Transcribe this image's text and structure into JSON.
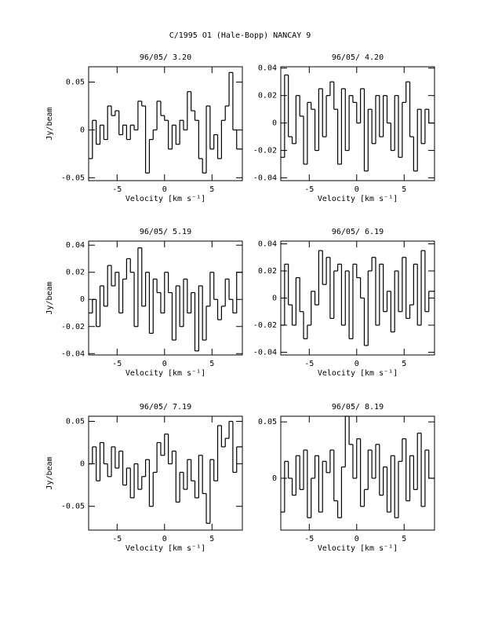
{
  "title": "C/1995 O1 (Hale-Bopp)   NANCAY     9",
  "chart_data": [
    {
      "type": "line",
      "drawstyle": "steps-mid",
      "color": "#000000",
      "title": "96/05/ 3.20",
      "xlabel": "Velocity [km s⁻¹]",
      "ylabel": "Jy/beam",
      "xlim": [
        -8,
        8.2
      ],
      "ylim": [
        -0.053,
        0.066
      ],
      "xticks": [
        -5,
        0,
        5
      ],
      "yticks": [
        -0.05,
        0,
        0.05
      ],
      "x": [
        -7.8,
        -7.4,
        -7.0,
        -6.6,
        -6.2,
        -5.8,
        -5.4,
        -5.0,
        -4.6,
        -4.2,
        -3.8,
        -3.4,
        -3.0,
        -2.6,
        -2.2,
        -1.8,
        -1.4,
        -1.0,
        -0.6,
        -0.2,
        0.2,
        0.6,
        1.0,
        1.4,
        1.8,
        2.2,
        2.6,
        3.0,
        3.4,
        3.8,
        4.2,
        4.6,
        5.0,
        5.4,
        5.8,
        6.2,
        6.6,
        7.0,
        7.4,
        7.8
      ],
      "values": [
        -0.03,
        0.01,
        -0.015,
        0.005,
        -0.01,
        0.025,
        0.015,
        0.02,
        -0.005,
        0.005,
        -0.01,
        0.005,
        0.0,
        0.03,
        0.025,
        -0.045,
        -0.01,
        0.0,
        0.03,
        0.015,
        0.01,
        -0.02,
        0.005,
        -0.015,
        0.01,
        0.0,
        0.04,
        0.02,
        0.01,
        -0.03,
        -0.045,
        0.025,
        -0.02,
        -0.005,
        -0.03,
        0.01,
        0.025,
        0.06,
        0.0,
        -0.02
      ]
    },
    {
      "type": "line",
      "drawstyle": "steps-mid",
      "color": "#000000",
      "title": "96/05/ 4.20",
      "xlabel": "Velocity [km s⁻¹]",
      "xlim": [
        -8,
        8.2
      ],
      "ylim": [
        -0.042,
        0.041
      ],
      "xticks": [
        -5,
        0,
        5
      ],
      "yticks": [
        -0.04,
        -0.02,
        0,
        0.02,
        0.04
      ],
      "x": [
        -7.8,
        -7.4,
        -7.0,
        -6.6,
        -6.2,
        -5.8,
        -5.4,
        -5.0,
        -4.6,
        -4.2,
        -3.8,
        -3.4,
        -3.0,
        -2.6,
        -2.2,
        -1.8,
        -1.4,
        -1.0,
        -0.6,
        -0.2,
        0.2,
        0.6,
        1.0,
        1.4,
        1.8,
        2.2,
        2.6,
        3.0,
        3.4,
        3.8,
        4.2,
        4.6,
        5.0,
        5.4,
        5.8,
        6.2,
        6.6,
        7.0,
        7.4,
        7.8
      ],
      "values": [
        -0.025,
        0.035,
        -0.01,
        -0.015,
        0.02,
        0.005,
        -0.03,
        0.015,
        0.01,
        -0.02,
        0.025,
        -0.01,
        0.02,
        0.03,
        0.01,
        -0.03,
        0.025,
        -0.02,
        0.02,
        0.015,
        0.0,
        0.025,
        -0.035,
        0.01,
        -0.015,
        0.02,
        -0.01,
        0.02,
        0.0,
        -0.02,
        0.02,
        -0.025,
        0.015,
        0.03,
        -0.01,
        -0.035,
        0.01,
        -0.015,
        0.01,
        0.0
      ]
    },
    {
      "type": "line",
      "drawstyle": "steps-mid",
      "color": "#000000",
      "title": "96/05/ 5.19",
      "xlabel": "Velocity [km s⁻¹]",
      "ylabel": "Jy/beam",
      "xlim": [
        -8,
        8.2
      ],
      "ylim": [
        -0.041,
        0.043
      ],
      "xticks": [
        -5,
        0,
        5
      ],
      "yticks": [
        -0.04,
        -0.02,
        0,
        0.02,
        0.04
      ],
      "x": [
        -7.8,
        -7.4,
        -7.0,
        -6.6,
        -6.2,
        -5.8,
        -5.4,
        -5.0,
        -4.6,
        -4.2,
        -3.8,
        -3.4,
        -3.0,
        -2.6,
        -2.2,
        -1.8,
        -1.4,
        -1.0,
        -0.6,
        -0.2,
        0.2,
        0.6,
        1.0,
        1.4,
        1.8,
        2.2,
        2.6,
        3.0,
        3.4,
        3.8,
        4.2,
        4.6,
        5.0,
        5.4,
        5.8,
        6.2,
        6.6,
        7.0,
        7.4,
        7.8
      ],
      "values": [
        -0.01,
        0.0,
        -0.02,
        0.01,
        -0.005,
        0.025,
        0.01,
        0.02,
        -0.01,
        0.015,
        0.03,
        0.02,
        -0.02,
        0.038,
        -0.005,
        0.02,
        -0.025,
        0.015,
        0.005,
        -0.01,
        0.02,
        0.005,
        -0.03,
        0.01,
        -0.02,
        0.015,
        -0.01,
        0.005,
        -0.038,
        0.01,
        -0.03,
        -0.005,
        0.02,
        0.0,
        -0.015,
        -0.005,
        0.015,
        0.0,
        -0.01,
        0.02
      ]
    },
    {
      "type": "line",
      "drawstyle": "steps-mid",
      "color": "#000000",
      "title": "96/05/ 6.19",
      "xlabel": "Velocity [km s⁻¹]",
      "xlim": [
        -8,
        8.2
      ],
      "ylim": [
        -0.042,
        0.042
      ],
      "xticks": [
        -5,
        0,
        5
      ],
      "yticks": [
        -0.04,
        -0.02,
        0,
        0.02,
        0.04
      ],
      "x": [
        -7.8,
        -7.4,
        -7.0,
        -6.6,
        -6.2,
        -5.8,
        -5.4,
        -5.0,
        -4.6,
        -4.2,
        -3.8,
        -3.4,
        -3.0,
        -2.6,
        -2.2,
        -1.8,
        -1.4,
        -1.0,
        -0.6,
        -0.2,
        0.2,
        0.6,
        1.0,
        1.4,
        1.8,
        2.2,
        2.6,
        3.0,
        3.4,
        3.8,
        4.2,
        4.6,
        5.0,
        5.4,
        5.8,
        6.2,
        6.6,
        7.0,
        7.4,
        7.8
      ],
      "values": [
        -0.02,
        0.025,
        -0.005,
        -0.02,
        0.015,
        -0.01,
        -0.03,
        -0.02,
        0.005,
        -0.005,
        0.035,
        0.01,
        0.03,
        -0.015,
        0.02,
        0.025,
        -0.02,
        0.02,
        -0.03,
        0.025,
        0.015,
        0.0,
        -0.035,
        0.02,
        0.03,
        -0.02,
        0.025,
        -0.01,
        0.005,
        -0.025,
        0.02,
        -0.01,
        0.03,
        -0.015,
        -0.005,
        0.025,
        -0.02,
        0.035,
        -0.01,
        0.005
      ]
    },
    {
      "type": "line",
      "drawstyle": "steps-mid",
      "color": "#000000",
      "title": "96/05/ 7.19",
      "xlabel": "Velocity [km s⁻¹]",
      "ylabel": "Jy/beam",
      "xlim": [
        -8,
        8.2
      ],
      "ylim": [
        -0.078,
        0.056
      ],
      "xticks": [
        -5,
        0,
        5
      ],
      "yticks": [
        -0.05,
        0,
        0.05
      ],
      "x": [
        -7.8,
        -7.4,
        -7.0,
        -6.6,
        -6.2,
        -5.8,
        -5.4,
        -5.0,
        -4.6,
        -4.2,
        -3.8,
        -3.4,
        -3.0,
        -2.6,
        -2.2,
        -1.8,
        -1.4,
        -1.0,
        -0.6,
        -0.2,
        0.2,
        0.6,
        1.0,
        1.4,
        1.8,
        2.2,
        2.6,
        3.0,
        3.4,
        3.8,
        4.2,
        4.6,
        5.0,
        5.4,
        5.8,
        6.2,
        6.6,
        7.0,
        7.4,
        7.8
      ],
      "values": [
        0.0,
        0.02,
        -0.02,
        0.025,
        0.0,
        -0.015,
        0.02,
        -0.005,
        0.015,
        -0.025,
        -0.005,
        -0.04,
        0.0,
        -0.03,
        -0.015,
        0.005,
        -0.05,
        -0.01,
        0.025,
        0.01,
        0.035,
        0.0,
        0.015,
        -0.045,
        -0.01,
        -0.03,
        0.005,
        -0.02,
        -0.04,
        0.01,
        -0.035,
        -0.07,
        0.005,
        -0.02,
        0.045,
        0.02,
        0.03,
        0.05,
        -0.01,
        0.02
      ]
    },
    {
      "type": "line",
      "drawstyle": "steps-mid",
      "color": "#000000",
      "title": "96/05/ 8.19",
      "xlabel": "Velocity [km s⁻¹]",
      "xlim": [
        -8,
        8.2
      ],
      "ylim": [
        -0.046,
        0.055
      ],
      "xticks": [
        -5,
        0,
        5
      ],
      "yticks": [
        0,
        0.05
      ],
      "x": [
        -7.8,
        -7.4,
        -7.0,
        -6.6,
        -6.2,
        -5.8,
        -5.4,
        -5.0,
        -4.6,
        -4.2,
        -3.8,
        -3.4,
        -3.0,
        -2.6,
        -2.2,
        -1.8,
        -1.4,
        -1.0,
        -0.6,
        -0.2,
        0.2,
        0.6,
        1.0,
        1.4,
        1.8,
        2.2,
        2.6,
        3.0,
        3.4,
        3.8,
        4.2,
        4.6,
        5.0,
        5.4,
        5.8,
        6.2,
        6.6,
        7.0,
        7.4,
        7.8
      ],
      "values": [
        -0.03,
        0.015,
        0.0,
        -0.015,
        0.02,
        -0.01,
        0.025,
        -0.035,
        0.0,
        0.02,
        -0.03,
        0.015,
        0.005,
        0.025,
        -0.02,
        -0.035,
        0.01,
        0.055,
        0.03,
        0.0,
        0.035,
        -0.025,
        -0.01,
        0.025,
        0.0,
        0.03,
        -0.015,
        0.01,
        -0.03,
        0.02,
        -0.035,
        0.015,
        0.035,
        -0.02,
        0.02,
        -0.01,
        0.04,
        -0.025,
        0.025,
        0.0
      ]
    }
  ]
}
